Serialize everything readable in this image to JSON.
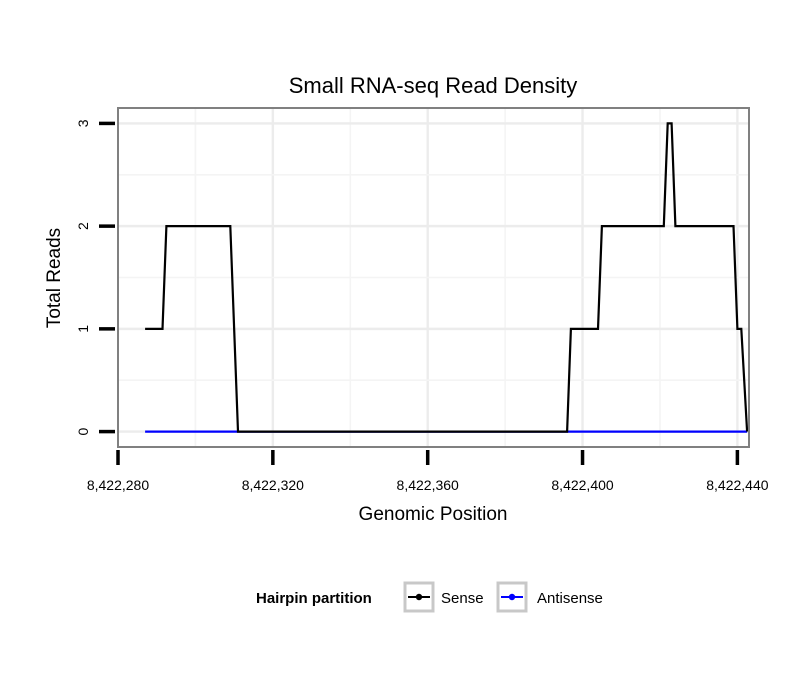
{
  "chart_data": {
    "type": "line",
    "title": "Small RNA-seq Read Density",
    "xlabel": "Genomic Position",
    "ylabel": "Total Reads",
    "xlim": [
      8422280,
      8422443
    ],
    "ylim": [
      -0.15,
      3.15
    ],
    "x_ticks": [
      8422280,
      8422320,
      8422360,
      8422400,
      8422440
    ],
    "x_tick_labels": [
      "8,422,280",
      "8,422,320",
      "8,422,360",
      "8,422,400",
      "8,422,440"
    ],
    "y_ticks": [
      0,
      1,
      2,
      3
    ],
    "y_tick_labels": [
      "0",
      "1",
      "2",
      "3"
    ],
    "grid": true,
    "legend": {
      "title": "Hairpin partition",
      "position": "bottom"
    },
    "series": [
      {
        "name": "Sense",
        "color": "#000000",
        "x": [
          8422287,
          8422291.5,
          8422292.5,
          8422301,
          8422309,
          8422311,
          8422396,
          8422397,
          8422404,
          8422405,
          8422421,
          8422422,
          8422423,
          8422424,
          8422439,
          8422440,
          8422441,
          8422442.5
        ],
        "y": [
          1,
          1,
          2,
          2,
          2,
          0,
          0,
          1,
          1,
          2,
          2,
          3,
          3,
          2,
          2,
          1,
          1,
          0
        ]
      },
      {
        "name": "Antisense",
        "color": "#0000ff",
        "x": [
          8422287,
          8422442.5
        ],
        "y": [
          0,
          0
        ]
      }
    ]
  }
}
